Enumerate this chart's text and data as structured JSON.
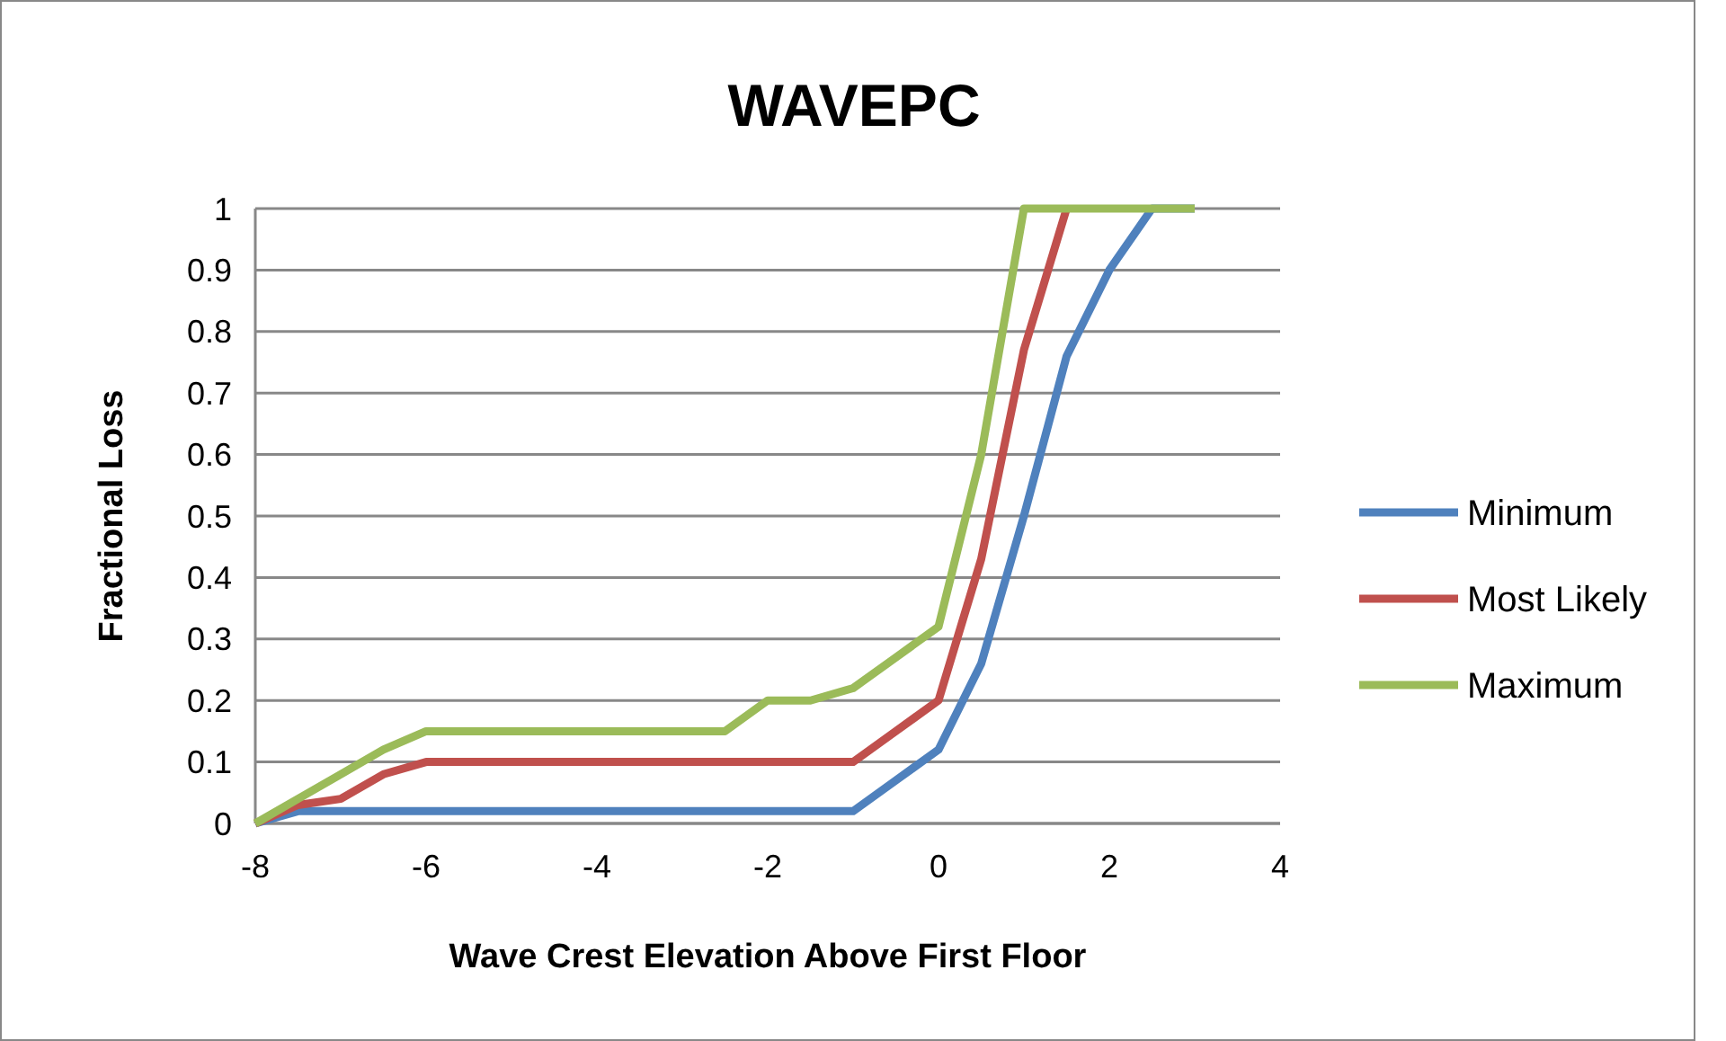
{
  "chart_data": {
    "type": "line",
    "title": "WAVEPC",
    "xlabel": "Wave Crest Elevation Above First Floor",
    "ylabel": "Fractional Loss",
    "xlim": [
      -8,
      4
    ],
    "xticks": [
      -8,
      -6,
      -4,
      -2,
      0,
      2,
      4
    ],
    "ylim": [
      0,
      1
    ],
    "yticks": [
      0,
      0.1,
      0.2,
      0.3,
      0.4,
      0.5,
      0.6,
      0.7,
      0.8,
      0.9,
      1
    ],
    "grid": "y",
    "legend": "right",
    "marker": "none",
    "line_style": "solid",
    "series": [
      {
        "name": "Minimum",
        "color": "#4f81bd",
        "x": [
          -8,
          -7.5,
          -7,
          -6.5,
          -6,
          -5.5,
          -5,
          -4.5,
          -4,
          -3.5,
          -3,
          -2.5,
          -2,
          -1.5,
          -1,
          -0.5,
          0,
          0.5,
          1,
          1.5,
          2,
          2.5,
          3
        ],
        "values": [
          0,
          0.02,
          0.02,
          0.02,
          0.02,
          0.02,
          0.02,
          0.02,
          0.02,
          0.02,
          0.02,
          0.02,
          0.02,
          0.02,
          0.02,
          0.07,
          0.12,
          0.26,
          0.5,
          0.76,
          0.9,
          1,
          1
        ]
      },
      {
        "name": "Most Likely",
        "color": "#c0504d",
        "x": [
          -8,
          -7.5,
          -7,
          -6.5,
          -6,
          -5.5,
          -5,
          -4.5,
          -4,
          -3.5,
          -3,
          -2.5,
          -2,
          -1.5,
          -1,
          -0.5,
          0,
          0.5,
          1,
          1.5
        ],
        "values": [
          0,
          0.03,
          0.04,
          0.08,
          0.1,
          0.1,
          0.1,
          0.1,
          0.1,
          0.1,
          0.1,
          0.1,
          0.1,
          0.1,
          0.1,
          0.15,
          0.2,
          0.43,
          0.77,
          1
        ]
      },
      {
        "name": "Maximum",
        "color": "#9bbb59",
        "x": [
          -8,
          -7.5,
          -7,
          -6.5,
          -6,
          -5.5,
          -5,
          -4.5,
          -4,
          -3.5,
          -3,
          -2.5,
          -2,
          -1.5,
          -1,
          -0.5,
          0,
          0.5,
          1,
          1.5,
          2,
          2.5,
          3
        ],
        "values": [
          0,
          0.04,
          0.08,
          0.12,
          0.15,
          0.15,
          0.15,
          0.15,
          0.15,
          0.15,
          0.15,
          0.15,
          0.2,
          0.2,
          0.22,
          0.27,
          0.32,
          0.6,
          1,
          1,
          1,
          1,
          1
        ]
      }
    ]
  }
}
